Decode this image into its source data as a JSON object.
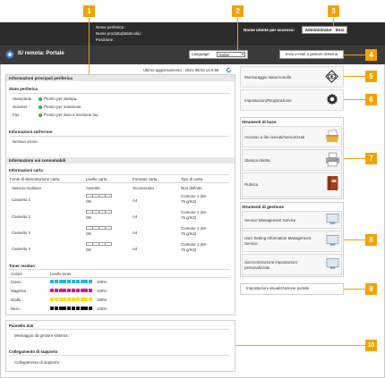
{
  "header": {
    "device_name_label": "Nome periferica :",
    "product_name_label": "Nome prodotto(Matricola) :",
    "location_label": "Posizione :",
    "login_user_label": "Nome utente per accesso:",
    "admin_button": "Administrator",
    "logout_label": "Esci",
    "brand": "IU remota: Portale",
    "language_label": "Language:",
    "language_value": "Italian",
    "mail_button": "Invio e-mail a gestore sistema"
  },
  "update": {
    "text": "Ultimo aggiornamento : 2021 08/10 14:0:55"
  },
  "main": {
    "info_header": "Informazioni principali periferica",
    "status_title": "Stato periferica",
    "status": [
      {
        "device": "Stampante :",
        "text": "Pronto per stampa."
      },
      {
        "device": "Scanner :",
        "text": "Pronto per scansione."
      },
      {
        "device": "Fax :",
        "text": "Pronto per invio e ricezione fax."
      }
    ],
    "error_title": "Informazioni sull'errore",
    "error_text": "Nessun errore.",
    "consumables_header": "Informazioni sui consumabili",
    "paper_title": "Informazioni carta",
    "paper_columns": [
      "Fonte di alimentazione carta",
      "Livello carta",
      "Formato carta",
      "Tipo di carta"
    ],
    "paper_rows": [
      {
        "source": "Vassoio multiuso",
        "level": "Assente",
        "size": "Sconosciuto",
        "type": "Non definito",
        "type2": ""
      },
      {
        "source": "Cassetto 1",
        "level": "OK",
        "size": "A4",
        "type": "Comune 1 (64-",
        "type2": "75 g/m2)"
      },
      {
        "source": "Cassetto 2",
        "level": "OK",
        "size": "A4",
        "type": "Comune 1 (64-",
        "type2": "75 g/m2)"
      },
      {
        "source": "Cassetto 3",
        "level": "OK",
        "size": "A4",
        "type": "Comune 1 (64-",
        "type2": "75 g/m2)"
      },
      {
        "source": "Cassetto 4",
        "level": "OK",
        "size": "A4",
        "type": "Comune 1 (64-",
        "type2": "75 g/m2)"
      }
    ],
    "toner_title": "Toner residuo",
    "toner_columns": [
      "Colore",
      "Livello toner"
    ],
    "toner_rows": [
      {
        "color": "Ciano :",
        "percent": "100%",
        "hex": "#22b7e6"
      },
      {
        "color": "Magenta :",
        "percent": "100%",
        "hex": "#e0168c"
      },
      {
        "color": "Giallo :",
        "percent": "100%",
        "hex": "#f5e400"
      },
      {
        "color": "Nero :",
        "percent": "100%",
        "hex": "#111111"
      }
    ]
  },
  "bottom": {
    "message_header": "Pannello dati",
    "message_text": "Messaggio da gestore sistema :",
    "support_header": "Collegamento di supporto",
    "support_text": "Collegamento di supporto :"
  },
  "right": {
    "monitor_label": "Monitoraggio stato/Annulla",
    "settings_label": "Impostazioni/Registrazione",
    "basic_title": "Strumenti di base",
    "basic_items": [
      "Accesso a file ricevuti/memorizzati",
      "Stampa diretta",
      "Rubrica"
    ],
    "mgmt_title": "Strumenti di gestione",
    "mgmt_items": [
      {
        "l1": "Service Management Service",
        "l2": ""
      },
      {
        "l1": "User Setting Information Management",
        "l2": "Service"
      },
      {
        "l1": "Sincronizzazione impostazioni",
        "l2": "personalizzate"
      }
    ],
    "portal_settings": "Impostazioni visualizzazione portale"
  },
  "callouts": [
    "1",
    "2",
    "3",
    "4",
    "5",
    "6",
    "7",
    "8",
    "9",
    "10"
  ],
  "colors": {
    "callout": "#f3a300",
    "status_ok": "#2eae4b"
  }
}
